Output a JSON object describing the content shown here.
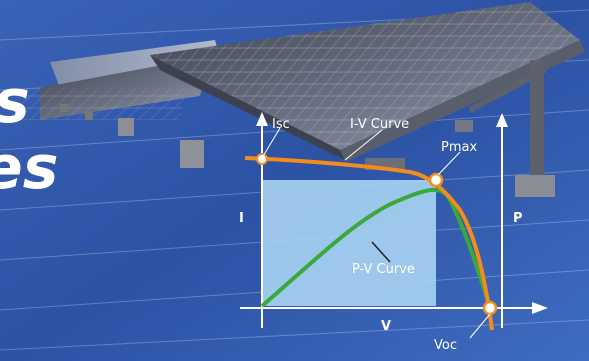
{
  "title_fragments": [
    "s",
    "es"
  ],
  "labels": {
    "isc": "Isc",
    "iv_curve": "I-V Curve",
    "pmax": "Pmax",
    "pv_curve": "P-V Curve",
    "voc": "Voc",
    "i_axis": "I",
    "v_axis": "V",
    "p_axis": "P"
  },
  "colors": {
    "background": "#2f56a8",
    "iv_curve": "#f28c1c",
    "pv_curve": "#3aa83a",
    "power_rect": "#a9d4f3",
    "axis": "#ffffff"
  }
}
